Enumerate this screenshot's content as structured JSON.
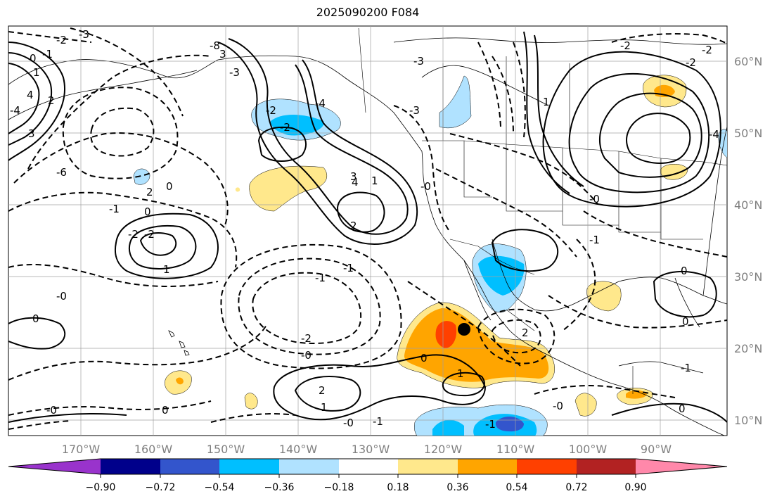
{
  "title": "2025090200 F084",
  "lon_labels": [
    "170°W",
    "160°W",
    "150°W",
    "140°W",
    "130°W",
    "120°W",
    "110°W",
    "100°W",
    "90°W"
  ],
  "lat_labels": [
    "60°N",
    "50°N",
    "40°N",
    "30°N",
    "20°N",
    "10°N"
  ],
  "colorbar": {
    "ticks": [
      "−0.90",
      "−0.72",
      "−0.54",
      "−0.36",
      "−0.18",
      "0.18",
      "0.36",
      "0.54",
      "0.72",
      "0.90"
    ],
    "colors": [
      "#9933cc",
      "#00008b",
      "#3355cc",
      "#00bfff",
      "#b0e2ff",
      "#ffffff",
      "#ffe88c",
      "#ffa500",
      "#ff4000",
      "#b22222",
      "#ff88aa"
    ]
  },
  "contour_labels": [
    "-3",
    "-2",
    "-1",
    "0",
    "1",
    "2",
    "3",
    "4",
    "-4",
    "-6",
    "-8",
    "-2",
    "3",
    "-3",
    "-2",
    "-4",
    "-3",
    "4",
    "2",
    "-1",
    "0",
    "-2",
    "-2",
    "-0",
    "0",
    "2",
    "1",
    "1",
    "0",
    "-1",
    "-1",
    "-0",
    "-0",
    "-1",
    "0",
    "0",
    "-0",
    "-0",
    "-1",
    "2",
    "2",
    "-2",
    "-3",
    "-4",
    "1",
    "0",
    "0",
    "-0",
    "1",
    "-2",
    "-2",
    "-2",
    "3",
    "1",
    "-1",
    "0",
    "-0",
    "-1"
  ],
  "marker": {
    "lon": -116.5,
    "lat": 22.7,
    "color": "#000000"
  },
  "colors": {
    "land_line": "#000000",
    "grid": "#a0a0a0"
  }
}
